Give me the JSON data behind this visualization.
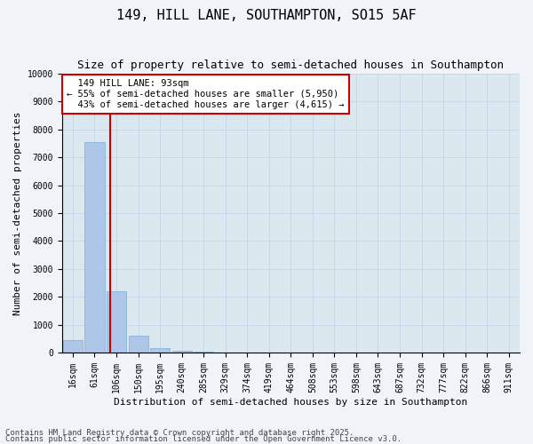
{
  "title1": "149, HILL LANE, SOUTHAMPTON, SO15 5AF",
  "title2": "Size of property relative to semi-detached houses in Southampton",
  "xlabel": "Distribution of semi-detached houses by size in Southampton",
  "ylabel": "Number of semi-detached properties",
  "categories": [
    "16sqm",
    "61sqm",
    "106sqm",
    "150sqm",
    "195sqm",
    "240sqm",
    "285sqm",
    "329sqm",
    "374sqm",
    "419sqm",
    "464sqm",
    "508sqm",
    "553sqm",
    "598sqm",
    "643sqm",
    "687sqm",
    "732sqm",
    "777sqm",
    "822sqm",
    "866sqm",
    "911sqm"
  ],
  "values": [
    430,
    7550,
    2200,
    600,
    150,
    50,
    20,
    10,
    5,
    3,
    2,
    1,
    1,
    1,
    0,
    0,
    0,
    0,
    0,
    0,
    0
  ],
  "bar_color": "#aec6e8",
  "bar_edge_color": "#7bafd4",
  "grid_color": "#c8d8e8",
  "background_color": "#dce8f0",
  "fig_background_color": "#f0f4f8",
  "property_size_label": "149 HILL LANE: 93sqm",
  "pct_smaller": 55,
  "n_smaller": 5950,
  "pct_larger": 43,
  "n_larger": 4615,
  "vline_color": "#cc0000",
  "annotation_box_color": "#cc0000",
  "ylim": [
    0,
    10000
  ],
  "yticks": [
    0,
    1000,
    2000,
    3000,
    4000,
    5000,
    6000,
    7000,
    8000,
    9000,
    10000
  ],
  "footer1": "Contains HM Land Registry data © Crown copyright and database right 2025.",
  "footer2": "Contains public sector information licensed under the Open Government Licence v3.0.",
  "title_fontsize": 11,
  "subtitle_fontsize": 9,
  "label_fontsize": 8,
  "tick_fontsize": 7,
  "footer_fontsize": 6.5,
  "annotation_fontsize": 7.5
}
